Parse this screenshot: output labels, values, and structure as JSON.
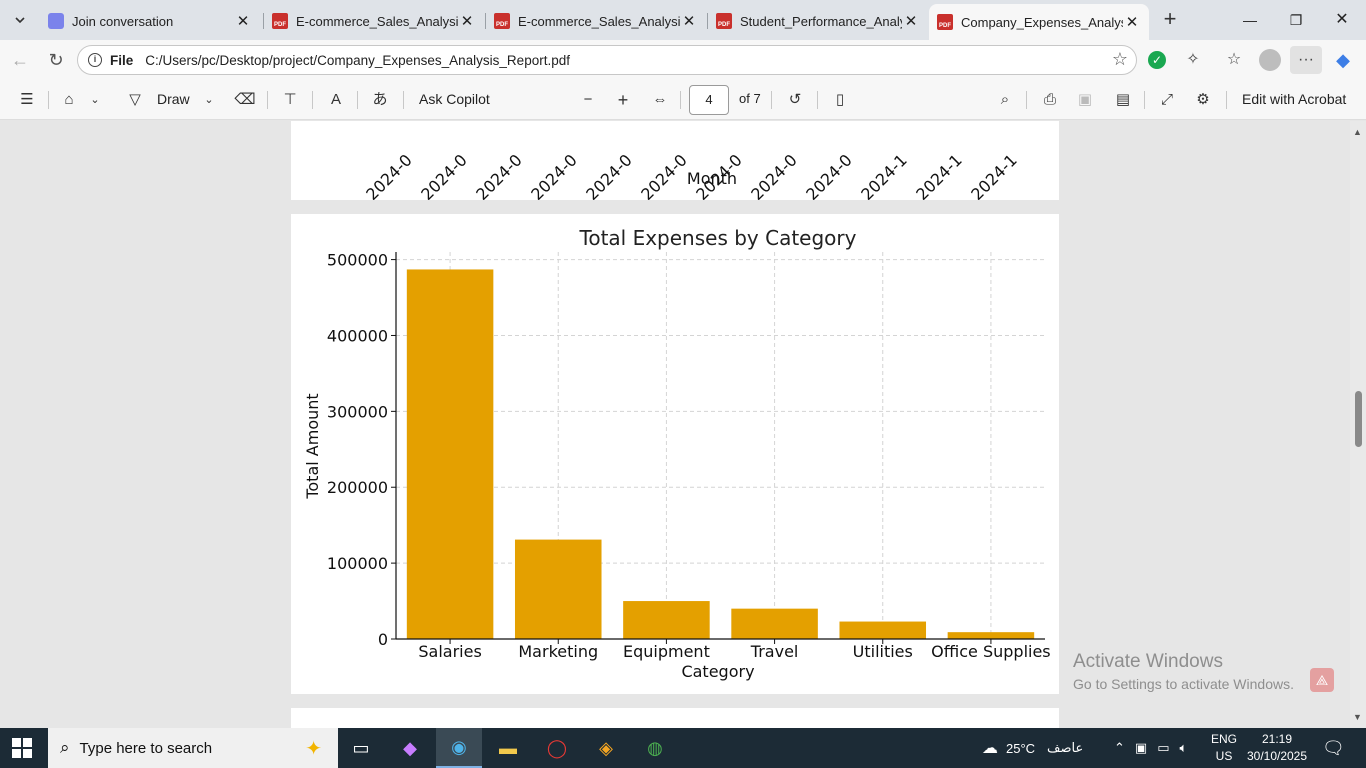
{
  "tabs": [
    {
      "title": "Join conversation",
      "icon": "teams-icon"
    },
    {
      "title": "E-commerce_Sales_Analysis_Re",
      "icon": "pdf-icon"
    },
    {
      "title": "E-commerce_Sales_Analysis_Re",
      "icon": "pdf-icon"
    },
    {
      "title": "Student_Performance_Analysis_",
      "icon": "pdf-icon"
    },
    {
      "title": "Company_Expenses_Analysis_R",
      "icon": "pdf-icon",
      "active": true
    }
  ],
  "address": {
    "scheme_label": "File",
    "url": "C:/Users/pc/Desktop/project/Company_Expenses_Analysis_Report.pdf"
  },
  "pdf_toolbar": {
    "draw_label": "Draw",
    "ask_copilot_label": "Ask Copilot",
    "page_number": "4",
    "page_total": "of 7",
    "edit_acrobat_label": "Edit with Acrobat"
  },
  "prev_chart": {
    "xlabel": "Month",
    "tick_labels": [
      "2024-0",
      "2024-0",
      "2024-0",
      "2024-0",
      "2024-0",
      "2024-0",
      "2024-0",
      "2024-0",
      "2024-0",
      "2024-1",
      "2024-1",
      "2024-1"
    ]
  },
  "chart_data": {
    "type": "bar",
    "title": "Total Expenses by Category",
    "xlabel": "Category",
    "ylabel": "Total Amount",
    "categories": [
      "Salaries",
      "Marketing",
      "Equipment",
      "Travel",
      "Utilities",
      "Office Supplies"
    ],
    "values": [
      487000,
      131000,
      50000,
      40000,
      23000,
      9000
    ],
    "ylim": [
      0,
      510000
    ],
    "yticks": [
      0,
      100000,
      200000,
      300000,
      400000,
      500000
    ],
    "ytick_labels": [
      "0",
      "100000",
      "200000",
      "300000",
      "400000",
      "500000"
    ],
    "grid": true,
    "bar_color": "#e4a000"
  },
  "watermark": {
    "line1": "Activate Windows",
    "line2": "Go to Settings to activate Windows."
  },
  "taskbar": {
    "search_placeholder": "Type here to search",
    "weather_temp": "25°C",
    "weather_text": "عاصف",
    "lang_line1": "ENG",
    "lang_line2": "US",
    "time": "21:19",
    "date": "30/10/2025"
  }
}
